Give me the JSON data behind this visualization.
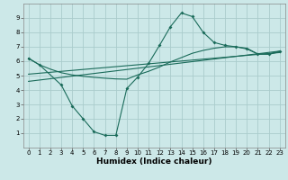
{
  "xlabel": "Humidex (Indice chaleur)",
  "xlim": [
    -0.5,
    23.5
  ],
  "ylim": [
    0,
    10
  ],
  "xticks": [
    0,
    1,
    2,
    3,
    4,
    5,
    6,
    7,
    8,
    9,
    10,
    11,
    12,
    13,
    14,
    15,
    16,
    17,
    18,
    19,
    20,
    21,
    22,
    23
  ],
  "yticks": [
    1,
    2,
    3,
    4,
    5,
    6,
    7,
    8,
    9
  ],
  "bg_color": "#cce8e8",
  "grid_color": "#aacccc",
  "line_color": "#1a6b5a",
  "line1_x": [
    0,
    1,
    3,
    4,
    5,
    6,
    7,
    8,
    9,
    10,
    11,
    12,
    13,
    14,
    15,
    16,
    17,
    18,
    19,
    20,
    21,
    22,
    23
  ],
  "line1_y": [
    6.2,
    5.75,
    4.35,
    2.9,
    2.0,
    1.1,
    0.85,
    0.85,
    4.1,
    4.9,
    5.85,
    7.1,
    8.4,
    9.35,
    9.1,
    8.0,
    7.3,
    7.1,
    7.0,
    6.85,
    6.5,
    6.5,
    6.7
  ],
  "line2_x": [
    0,
    1,
    2,
    3,
    4,
    5,
    6,
    7,
    8,
    9,
    10,
    11,
    12,
    13,
    14,
    15,
    16,
    17,
    18,
    19,
    20,
    21,
    22,
    23
  ],
  "line2_y": [
    6.2,
    5.75,
    5.45,
    5.2,
    5.05,
    4.95,
    4.88,
    4.82,
    4.77,
    4.75,
    5.05,
    5.3,
    5.6,
    5.95,
    6.25,
    6.55,
    6.75,
    6.9,
    7.0,
    7.0,
    6.9,
    6.5,
    6.48,
    6.65
  ],
  "line3_x": [
    0,
    23
  ],
  "line3_y": [
    4.6,
    6.7
  ],
  "line4_x": [
    0,
    23
  ],
  "line4_y": [
    5.1,
    6.6
  ]
}
